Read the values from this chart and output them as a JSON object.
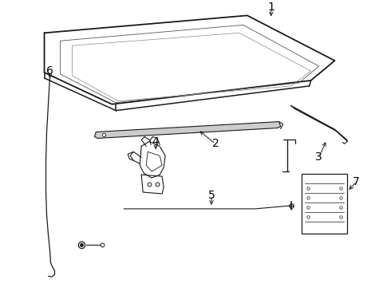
{
  "background_color": "#ffffff",
  "line_color": "#1a1a1a",
  "label_color": "#000000",
  "figure_width": 4.9,
  "figure_height": 3.6,
  "dpi": 100,
  "label_fontsize": 10
}
